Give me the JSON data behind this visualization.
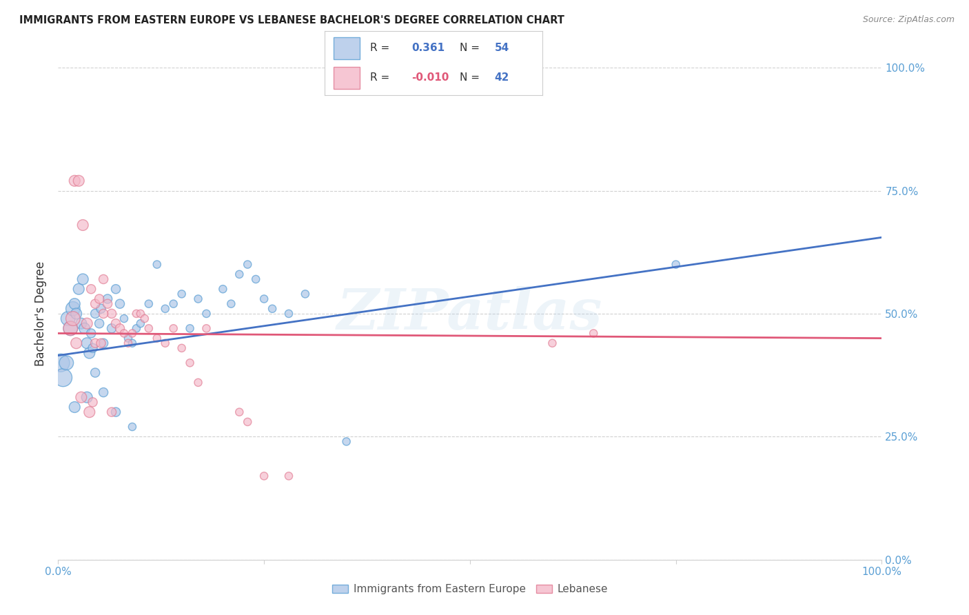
{
  "title": "IMMIGRANTS FROM EASTERN EUROPE VS LEBANESE BACHELOR'S DEGREE CORRELATION CHART",
  "source": "Source: ZipAtlas.com",
  "ylabel": "Bachelor's Degree",
  "ytick_labels": [
    "0.0%",
    "25.0%",
    "50.0%",
    "75.0%",
    "100.0%"
  ],
  "ytick_values": [
    0,
    25,
    50,
    75,
    100
  ],
  "xlim": [
    0,
    100
  ],
  "ylim": [
    0,
    100
  ],
  "watermark": "ZIPatlas",
  "blue_color": "#aec6e8",
  "blue_edge_color": "#5a9fd4",
  "pink_color": "#f4b8c8",
  "pink_edge_color": "#e07890",
  "blue_line_color": "#4472c4",
  "pink_line_color": "#e05878",
  "grid_color": "#d0d0d0",
  "axis_tick_color": "#5a9fd4",
  "legend_label_color": "#333333",
  "legend_value_color": "#4472c4",
  "legend_neg_color": "#e05878",
  "legend_blue_label": "Immigrants from Eastern Europe",
  "legend_pink_label": "Lebanese",
  "legend_blue_R": "0.361",
  "legend_blue_N": "54",
  "legend_pink_R": "-0.010",
  "legend_pink_N": "42",
  "blue_scatter_x": [
    1.2,
    1.5,
    1.8,
    2.0,
    2.2,
    2.5,
    2.8,
    3.0,
    3.2,
    3.5,
    3.8,
    4.0,
    4.2,
    4.5,
    5.0,
    5.2,
    5.5,
    6.0,
    6.5,
    7.0,
    7.5,
    8.0,
    8.5,
    9.0,
    9.5,
    10.0,
    11.0,
    12.0,
    13.0,
    14.0,
    15.0,
    16.0,
    17.0,
    18.0,
    20.0,
    21.0,
    22.0,
    23.0,
    24.0,
    25.0,
    26.0,
    28.0,
    30.0,
    0.3,
    0.6,
    1.0,
    2.0,
    3.5,
    4.5,
    5.5,
    7.0,
    9.0,
    75.0,
    35.0
  ],
  "blue_scatter_y": [
    49,
    47,
    51,
    52,
    50,
    55,
    48,
    57,
    47,
    44,
    42,
    46,
    43,
    50,
    48,
    51,
    44,
    53,
    47,
    55,
    52,
    49,
    45,
    44,
    47,
    48,
    52,
    60,
    51,
    52,
    54,
    47,
    53,
    50,
    55,
    52,
    58,
    60,
    57,
    53,
    51,
    50,
    54,
    40,
    37,
    40,
    31,
    33,
    38,
    34,
    30,
    27,
    60,
    24
  ],
  "pink_scatter_x": [
    2.0,
    2.5,
    3.0,
    4.0,
    4.5,
    5.0,
    5.5,
    6.0,
    6.5,
    7.0,
    7.5,
    8.0,
    8.5,
    9.0,
    9.5,
    10.0,
    10.5,
    11.0,
    12.0,
    13.0,
    14.0,
    15.0,
    16.0,
    17.0,
    18.0,
    3.5,
    4.5,
    5.5,
    1.5,
    1.8,
    2.2,
    2.8,
    3.8,
    4.2,
    5.2,
    6.5,
    60.0,
    65.0,
    22.0,
    23.0,
    25.0,
    28.0
  ],
  "pink_scatter_y": [
    77,
    77,
    68,
    55,
    52,
    53,
    57,
    52,
    50,
    48,
    47,
    46,
    44,
    46,
    50,
    50,
    49,
    47,
    45,
    44,
    47,
    43,
    40,
    36,
    47,
    48,
    44,
    50,
    47,
    49,
    44,
    33,
    30,
    32,
    44,
    30,
    44,
    46,
    30,
    28,
    17,
    17
  ],
  "blue_trend_x": [
    0,
    100
  ],
  "blue_trend_y": [
    41.5,
    65.5
  ],
  "pink_trend_x": [
    0,
    100
  ],
  "pink_trend_y": [
    46.0,
    45.0
  ]
}
